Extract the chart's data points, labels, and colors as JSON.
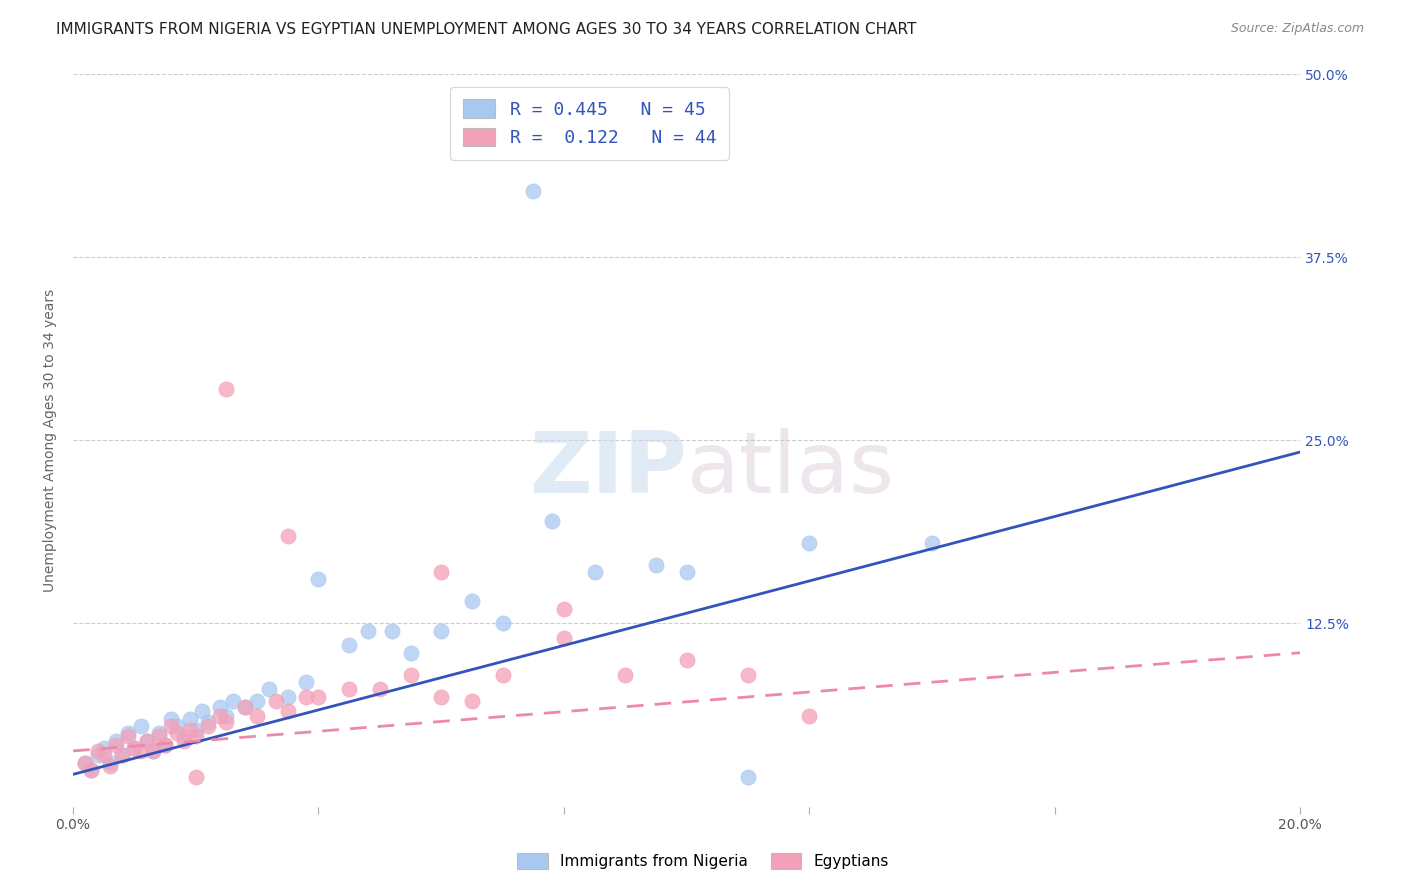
{
  "title": "IMMIGRANTS FROM NIGERIA VS EGYPTIAN UNEMPLOYMENT AMONG AGES 30 TO 34 YEARS CORRELATION CHART",
  "source": "Source: ZipAtlas.com",
  "ylabel": "Unemployment Among Ages 30 to 34 years",
  "xlim": [
    0.0,
    0.2
  ],
  "ylim": [
    0.0,
    0.5
  ],
  "xticks": [
    0.0,
    0.04,
    0.08,
    0.12,
    0.16,
    0.2
  ],
  "yticks": [
    0.125,
    0.25,
    0.375,
    0.5
  ],
  "ytick_labels_right": [
    "12.5%",
    "25.0%",
    "37.5%",
    "50.0%"
  ],
  "legend_blue_R": "0.445",
  "legend_blue_N": "45",
  "legend_pink_R": "0.122",
  "legend_pink_N": "44",
  "blue_color": "#A8C8F0",
  "pink_color": "#F4A0B8",
  "blue_line_color": "#3355BB",
  "pink_line_color": "#EE88AA",
  "watermark_zip": "ZIP",
  "watermark_atlas": "atlas",
  "blue_scatter_x": [
    0.002,
    0.003,
    0.004,
    0.005,
    0.006,
    0.007,
    0.008,
    0.009,
    0.01,
    0.011,
    0.012,
    0.013,
    0.014,
    0.015,
    0.016,
    0.017,
    0.018,
    0.019,
    0.02,
    0.021,
    0.022,
    0.024,
    0.025,
    0.026,
    0.028,
    0.03,
    0.032,
    0.035,
    0.038,
    0.04,
    0.045,
    0.048,
    0.052,
    0.055,
    0.06,
    0.065,
    0.07,
    0.078,
    0.085,
    0.095,
    0.1,
    0.12,
    0.14,
    0.075,
    0.11
  ],
  "blue_scatter_y": [
    0.03,
    0.025,
    0.035,
    0.04,
    0.03,
    0.045,
    0.035,
    0.05,
    0.04,
    0.055,
    0.045,
    0.038,
    0.05,
    0.042,
    0.06,
    0.055,
    0.048,
    0.06,
    0.052,
    0.065,
    0.058,
    0.068,
    0.062,
    0.072,
    0.068,
    0.072,
    0.08,
    0.075,
    0.085,
    0.155,
    0.11,
    0.12,
    0.12,
    0.105,
    0.12,
    0.14,
    0.125,
    0.195,
    0.16,
    0.165,
    0.16,
    0.18,
    0.18,
    0.42,
    0.02
  ],
  "pink_scatter_x": [
    0.002,
    0.003,
    0.004,
    0.005,
    0.006,
    0.007,
    0.008,
    0.009,
    0.01,
    0.011,
    0.012,
    0.013,
    0.014,
    0.015,
    0.016,
    0.017,
    0.018,
    0.019,
    0.02,
    0.022,
    0.024,
    0.025,
    0.028,
    0.03,
    0.033,
    0.035,
    0.038,
    0.04,
    0.045,
    0.05,
    0.055,
    0.06,
    0.065,
    0.07,
    0.08,
    0.09,
    0.1,
    0.11,
    0.12,
    0.025,
    0.035,
    0.06,
    0.08,
    0.02
  ],
  "pink_scatter_y": [
    0.03,
    0.025,
    0.038,
    0.035,
    0.028,
    0.042,
    0.035,
    0.048,
    0.04,
    0.038,
    0.045,
    0.038,
    0.048,
    0.042,
    0.055,
    0.05,
    0.045,
    0.052,
    0.048,
    0.055,
    0.062,
    0.058,
    0.068,
    0.062,
    0.072,
    0.065,
    0.075,
    0.075,
    0.08,
    0.08,
    0.09,
    0.075,
    0.072,
    0.09,
    0.115,
    0.09,
    0.1,
    0.09,
    0.062,
    0.285,
    0.185,
    0.16,
    0.135,
    0.02
  ],
  "blue_line_x": [
    0.0,
    0.2
  ],
  "blue_line_y": [
    0.022,
    0.242
  ],
  "pink_line_x": [
    0.0,
    0.2
  ],
  "pink_line_y": [
    0.038,
    0.105
  ],
  "legend_label_blue": "Immigrants from Nigeria",
  "legend_label_pink": "Egyptians",
  "title_fontsize": 11,
  "axis_tick_fontsize": 10,
  "source_fontsize": 9,
  "background_color": "#FFFFFF",
  "grid_color": "#CCCCCC"
}
